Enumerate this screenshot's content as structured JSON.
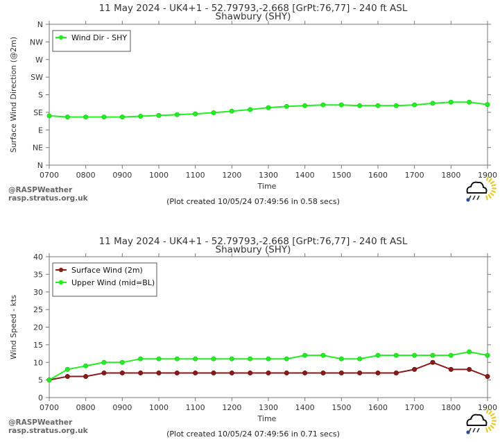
{
  "chart_data": [
    {
      "type": "line",
      "title": "11 May 2024 - UK4+1 - 52.79793,-2.668 [GrPt:76,77]  - 240 ft ASL",
      "subtitle": "Shawbury (SHY)",
      "xlabel": "Time",
      "ylabel": "Surface Wind Direction (@2m)",
      "x": [
        "0700",
        "0730",
        "0800",
        "0830",
        "0900",
        "0930",
        "1000",
        "1030",
        "1100",
        "1130",
        "1200",
        "1230",
        "1300",
        "1330",
        "1400",
        "1430",
        "1500",
        "1530",
        "1600",
        "1630",
        "1700",
        "1730",
        "1800",
        "1830",
        "1900"
      ],
      "xticks": [
        "0700",
        "0800",
        "0900",
        "1000",
        "1100",
        "1200",
        "1300",
        "1400",
        "1500",
        "1600",
        "1700",
        "1800",
        "1900"
      ],
      "ylim": [
        0,
        360
      ],
      "yticks": [
        {
          "value": 0,
          "label": "N"
        },
        {
          "value": 45,
          "label": "NE"
        },
        {
          "value": 90,
          "label": "E"
        },
        {
          "value": 135,
          "label": "SE"
        },
        {
          "value": 180,
          "label": "S"
        },
        {
          "value": 225,
          "label": "SW"
        },
        {
          "value": 270,
          "label": "W"
        },
        {
          "value": 315,
          "label": "NW"
        },
        {
          "value": 360,
          "label": "N"
        }
      ],
      "series": [
        {
          "name": "Wind Dir - SHY",
          "color": "#22ee22",
          "values": [
            126,
            123,
            123,
            123,
            123,
            125,
            127,
            129,
            131,
            134,
            138,
            142,
            147,
            150,
            152,
            154,
            154,
            152,
            152,
            152,
            154,
            158,
            161,
            161,
            155
          ]
        }
      ],
      "legend": "top-left",
      "footer": {
        "credit1": "@RASPWeather",
        "credit2": "rasp.stratus.org.uk",
        "plot_created": "(Plot created 10/05/24 07:49:56 in 0.58 secs)"
      },
      "grid": false
    },
    {
      "type": "line",
      "title": "11 May 2024 - UK4+1 - 52.79793,-2.668 [GrPt:76,77]  - 240 ft ASL",
      "subtitle": "Shawbury (SHY)",
      "xlabel": "Time",
      "ylabel": "Wind Speed - kts",
      "x": [
        "0700",
        "0730",
        "0800",
        "0830",
        "0900",
        "0930",
        "1000",
        "1030",
        "1100",
        "1130",
        "1200",
        "1230",
        "1300",
        "1330",
        "1400",
        "1430",
        "1500",
        "1530",
        "1600",
        "1630",
        "1700",
        "1730",
        "1800",
        "1830",
        "1900"
      ],
      "xticks": [
        "0700",
        "0800",
        "0900",
        "1000",
        "1100",
        "1200",
        "1300",
        "1400",
        "1500",
        "1600",
        "1700",
        "1800",
        "1900"
      ],
      "ylim": [
        0,
        40
      ],
      "yticks": [
        {
          "value": 0,
          "label": "0"
        },
        {
          "value": 5,
          "label": "5"
        },
        {
          "value": 10,
          "label": "10"
        },
        {
          "value": 15,
          "label": "15"
        },
        {
          "value": 20,
          "label": "20"
        },
        {
          "value": 25,
          "label": "25"
        },
        {
          "value": 30,
          "label": "30"
        },
        {
          "value": 35,
          "label": "35"
        },
        {
          "value": 40,
          "label": "40"
        }
      ],
      "series": [
        {
          "name": "Surface Wind (2m)",
          "color": "#8b1a1a",
          "values": [
            5,
            6,
            6,
            7,
            7,
            7,
            7,
            7,
            7,
            7,
            7,
            7,
            7,
            7,
            7,
            7,
            7,
            7,
            7,
            7,
            8,
            10,
            8,
            8,
            6
          ]
        },
        {
          "name": "Upper Wind (mid=BL)",
          "color": "#22ee22",
          "values": [
            5,
            8,
            9,
            10,
            10,
            11,
            11,
            11,
            11,
            11,
            11,
            11,
            11,
            11,
            12,
            12,
            11,
            11,
            12,
            12,
            12,
            12,
            12,
            13,
            12
          ]
        }
      ],
      "legend": "top-left",
      "footer": {
        "credit1": "@RASPWeather",
        "credit2": "rasp.stratus.org.uk",
        "plot_created": "(Plot created 10/05/24 07:49:56 in 0.71 secs)"
      },
      "grid": false
    }
  ]
}
